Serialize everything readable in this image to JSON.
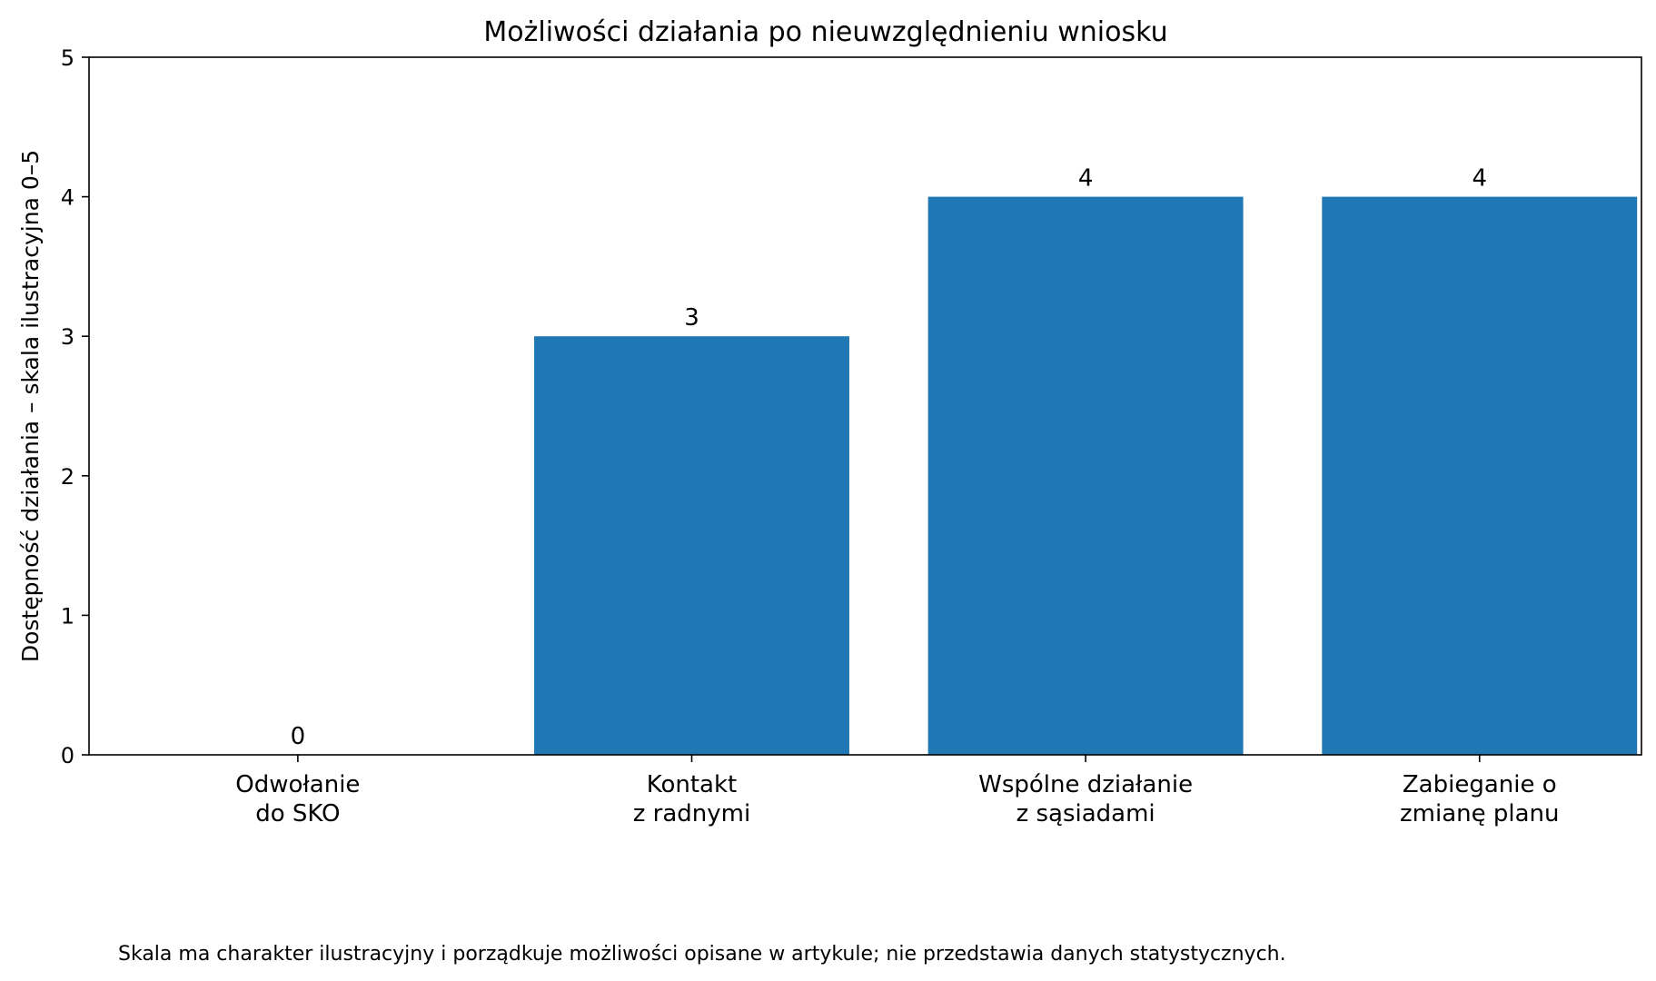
{
  "chart_data": {
    "type": "bar",
    "title": "Możliwości działania po nieuwzględnieniu wniosku",
    "xlabel": "",
    "ylabel": "Dostępność działania – skala ilustracyjna 0–5",
    "categories": [
      [
        "Odwołanie",
        "do SKO"
      ],
      [
        "Kontakt",
        "z radnymi"
      ],
      [
        "Wspólne działanie",
        "z sąsiadami"
      ],
      [
        "Zabieganie o",
        "zmianę planu"
      ]
    ],
    "values": [
      0,
      3,
      4,
      4
    ],
    "value_labels": [
      "0",
      "3",
      "4",
      "4"
    ],
    "ylim": [
      0,
      5
    ],
    "yticks": [
      0,
      1,
      2,
      3,
      4,
      5
    ],
    "ytick_labels": [
      "0",
      "1",
      "2",
      "3",
      "4",
      "5"
    ],
    "bar_color": "#1f77b4",
    "grid": false,
    "legend": "none"
  },
  "footnote": "Skala ma charakter ilustracyjny i porządkuje możliwości opisane w artykule; nie przedstawia danych statystycznych."
}
